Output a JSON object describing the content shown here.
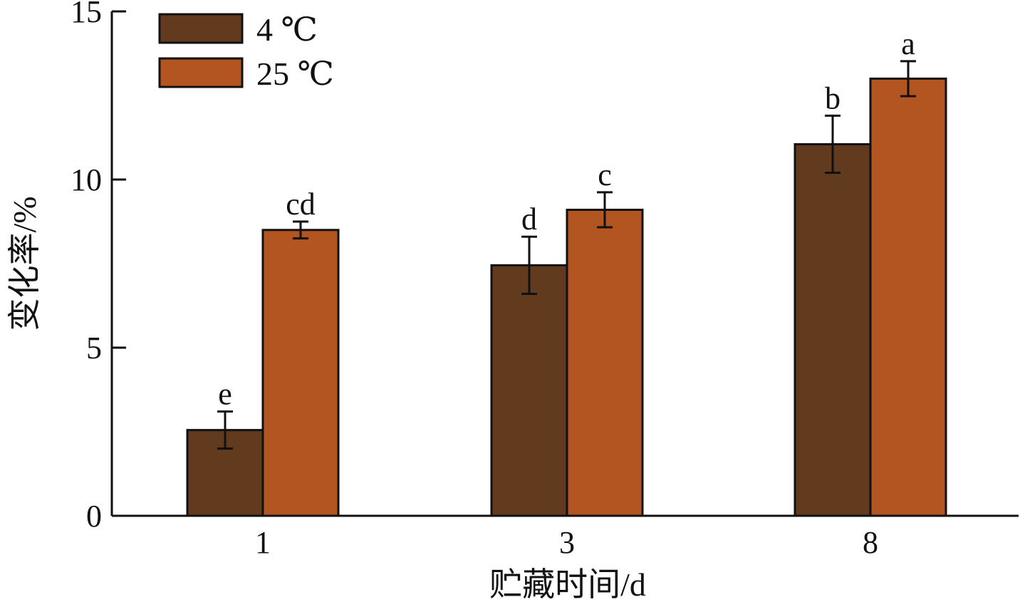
{
  "chart_data": {
    "type": "bar",
    "xlabel": "贮藏时间/d",
    "ylabel": "变化率/%",
    "categories": [
      "1",
      "3",
      "8"
    ],
    "ylim": [
      0,
      15
    ],
    "yticks": [
      "0",
      "5",
      "10",
      "15"
    ],
    "legend_position": "top-left",
    "series": [
      {
        "name": "4 ℃",
        "color": "#623a1e",
        "values": [
          2.55,
          7.45,
          11.05
        ],
        "errors": [
          0.55,
          0.85,
          0.85
        ],
        "labels": [
          "e",
          "d",
          "b"
        ]
      },
      {
        "name": "25 ℃",
        "color": "#b25521",
        "values": [
          8.5,
          9.1,
          13.0
        ],
        "errors": [
          0.25,
          0.52,
          0.52
        ],
        "labels": [
          "cd",
          "c",
          "a"
        ]
      }
    ]
  }
}
